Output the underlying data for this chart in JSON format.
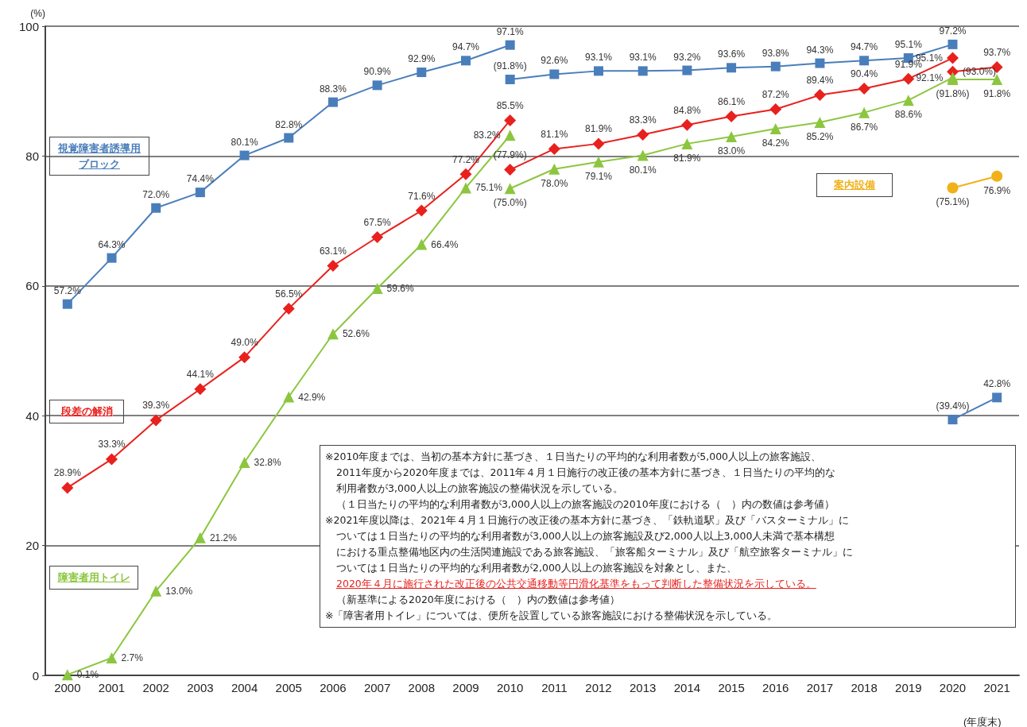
{
  "chart_data": {
    "type": "line",
    "xlabel": "(年度末)",
    "ylabel": "(%)",
    "categories": [
      "2000",
      "2001",
      "2002",
      "2003",
      "2004",
      "2005",
      "2006",
      "2007",
      "2008",
      "2009",
      "2010",
      "2011",
      "2012",
      "2013",
      "2014",
      "2015",
      "2016",
      "2017",
      "2018",
      "2019",
      "2020",
      "2021"
    ],
    "ylim": [
      0,
      100
    ],
    "yticks": [
      0,
      20,
      40,
      60,
      80,
      100
    ],
    "grid": "y",
    "series": [
      {
        "name": "視覚障害者誘導用ブロック",
        "color": "#4a7ebb",
        "marker": "square",
        "values": [
          57.2,
          64.3,
          72.0,
          74.4,
          80.1,
          82.8,
          88.3,
          90.9,
          92.9,
          94.7,
          97.1,
          null,
          null,
          null,
          null,
          null,
          null,
          null,
          null,
          null,
          null,
          null
        ],
        "value_labels": [
          "57.2%",
          "64.3%",
          "72.0%",
          "74.4%",
          "80.1%",
          "82.8%",
          "88.3%",
          "90.9%",
          "92.9%",
          "94.7%",
          "97.1%",
          null,
          null,
          null,
          null,
          null,
          null,
          null,
          null,
          null,
          null,
          null
        ]
      },
      {
        "color": "#4a7ebb",
        "marker": "square",
        "values": [
          null,
          null,
          null,
          null,
          null,
          null,
          null,
          null,
          null,
          null,
          91.8,
          92.6,
          93.1,
          93.1,
          93.2,
          93.6,
          93.8,
          94.3,
          94.7,
          95.1,
          97.2,
          null
        ],
        "value_labels": [
          null,
          null,
          null,
          null,
          null,
          null,
          null,
          null,
          null,
          null,
          "(91.8%)",
          "92.6%",
          "93.1%",
          "93.1%",
          "93.2%",
          "93.6%",
          "93.8%",
          "94.3%",
          "94.7%",
          "95.1%",
          "97.2%",
          null
        ]
      },
      {
        "color": "#4a7ebb",
        "marker": "square",
        "values": [
          null,
          null,
          null,
          null,
          null,
          null,
          null,
          null,
          null,
          null,
          null,
          null,
          null,
          null,
          null,
          null,
          null,
          null,
          null,
          null,
          39.4,
          42.8
        ],
        "value_labels": [
          null,
          null,
          null,
          null,
          null,
          null,
          null,
          null,
          null,
          null,
          null,
          null,
          null,
          null,
          null,
          null,
          null,
          null,
          null,
          null,
          "(39.4%)",
          "42.8%"
        ]
      },
      {
        "name": "段差の解消",
        "color": "#e8211e",
        "marker": "diamond",
        "values": [
          28.9,
          33.3,
          39.3,
          44.1,
          49.0,
          56.5,
          63.1,
          67.5,
          71.6,
          77.2,
          85.5,
          null,
          null,
          null,
          null,
          null,
          null,
          null,
          null,
          null,
          null,
          null
        ],
        "value_labels": [
          "28.9%",
          "33.3%",
          "39.3%",
          "44.1%",
          "49.0%",
          "56.5%",
          "63.1%",
          "67.5%",
          "71.6%",
          "77.2%",
          "85.5%",
          null,
          null,
          null,
          null,
          null,
          null,
          null,
          null,
          null,
          null,
          null
        ]
      },
      {
        "color": "#e8211e",
        "marker": "diamond",
        "values": [
          null,
          null,
          null,
          null,
          null,
          null,
          null,
          null,
          null,
          null,
          77.9,
          81.1,
          81.9,
          83.3,
          84.8,
          86.1,
          87.2,
          89.4,
          90.4,
          91.9,
          95.1,
          null
        ],
        "value_labels": [
          null,
          null,
          null,
          null,
          null,
          null,
          null,
          null,
          null,
          null,
          "(77.9%)",
          "81.1%",
          "81.9%",
          "83.3%",
          "84.8%",
          "86.1%",
          "87.2%",
          "89.4%",
          "90.4%",
          "91.9%",
          "95.1%",
          null
        ]
      },
      {
        "color": "#e8211e",
        "marker": "diamond",
        "values": [
          null,
          null,
          null,
          null,
          null,
          null,
          null,
          null,
          null,
          null,
          null,
          null,
          null,
          null,
          null,
          null,
          null,
          null,
          null,
          null,
          93.0,
          93.7
        ],
        "value_labels": [
          null,
          null,
          null,
          null,
          null,
          null,
          null,
          null,
          null,
          null,
          null,
          null,
          null,
          null,
          null,
          null,
          null,
          null,
          null,
          null,
          "(93.0%)",
          "93.7%"
        ]
      },
      {
        "name": "障害者用トイレ",
        "color": "#8cc63f",
        "marker": "triangle",
        "values": [
          0.1,
          2.7,
          13.0,
          21.2,
          32.8,
          42.9,
          52.6,
          59.6,
          66.4,
          75.1,
          83.2,
          null,
          null,
          null,
          null,
          null,
          null,
          null,
          null,
          null,
          null,
          null
        ],
        "value_labels": [
          "0.1%",
          "2.7%",
          "13.0%",
          "21.2%",
          "32.8%",
          "42.9%",
          "52.6%",
          "59.6%",
          "66.4%",
          "75.1%",
          "83.2%",
          null,
          null,
          null,
          null,
          null,
          null,
          null,
          null,
          null,
          null,
          null
        ]
      },
      {
        "color": "#8cc63f",
        "marker": "triangle",
        "values": [
          null,
          null,
          null,
          null,
          null,
          null,
          null,
          null,
          null,
          null,
          75.0,
          78.0,
          79.1,
          80.1,
          81.9,
          83.0,
          84.2,
          85.2,
          86.7,
          88.6,
          92.1,
          null
        ],
        "value_labels": [
          null,
          null,
          null,
          null,
          null,
          null,
          null,
          null,
          null,
          null,
          "(75.0%)",
          "78.0%",
          "79.1%",
          "80.1%",
          "81.9%",
          "83.0%",
          "84.2%",
          "85.2%",
          "86.7%",
          "88.6%",
          "92.1%",
          null
        ]
      },
      {
        "color": "#8cc63f",
        "marker": "triangle",
        "values": [
          null,
          null,
          null,
          null,
          null,
          null,
          null,
          null,
          null,
          null,
          null,
          null,
          null,
          null,
          null,
          null,
          null,
          null,
          null,
          null,
          91.8,
          91.8
        ],
        "value_labels": [
          null,
          null,
          null,
          null,
          null,
          null,
          null,
          null,
          null,
          null,
          null,
          null,
          null,
          null,
          null,
          null,
          null,
          null,
          null,
          null,
          "(91.8%)",
          "91.8%"
        ]
      },
      {
        "name": "案内設備",
        "color": "#f0b11a",
        "marker": "circle",
        "values": [
          null,
          null,
          null,
          null,
          null,
          null,
          null,
          null,
          null,
          null,
          null,
          null,
          null,
          null,
          null,
          null,
          null,
          null,
          null,
          null,
          75.1,
          76.9
        ],
        "value_labels": [
          null,
          null,
          null,
          null,
          null,
          null,
          null,
          null,
          null,
          null,
          null,
          null,
          null,
          null,
          null,
          null,
          null,
          null,
          null,
          null,
          "(75.1%)",
          "76.9%"
        ]
      }
    ],
    "annotations": [
      "※2010年度までは、当初の基本方針に基づき、１日当たりの平均的な利用者数が5,000人以上の旅客施設、",
      "2011年度から2020年度までは、2011年４月１日施行の改正後の基本方針に基づき、１日当たりの平均的な",
      "利用者数が3,000人以上の旅客施設の整備状況を示している。",
      "（１日当たりの平均的な利用者数が3,000人以上の旅客施設の2010年度における（　）内の数値は参考値）",
      "※2021年度以降は、2021年４月１日施行の改正後の基本方針に基づき、「鉄軌道駅」及び「バスターミナル」に",
      "ついては１日当たりの平均的な利用者数が3,000人以上の旅客施設及び2,000人以上3,000人未満で基本構想",
      "における重点整備地区内の生活関連施設である旅客施設、「旅客船ターミナル」及び「航空旅客ターミナル」に",
      "ついては１日当たりの平均的な利用者数が2,000人以上の旅客施設を対象とし、また、",
      "2020年４月に施行された改正後の公共交通移動等円滑化基準をもって判断した整備状況を示している。",
      "（新基準による2020年度における（　）内の数値は参考値）",
      "※「障害者用トイレ」については、便所を設置している旅客施設における整備状況を示している。"
    ]
  }
}
